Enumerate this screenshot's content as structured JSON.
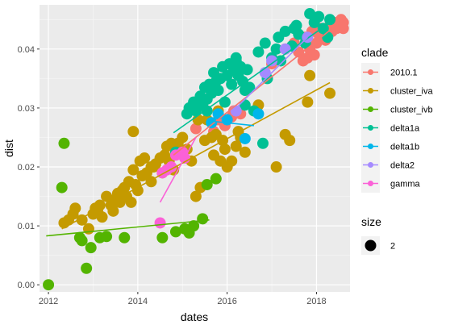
{
  "chart_data": {
    "type": "scatter",
    "xlabel": "dates",
    "ylabel": "dist",
    "xlim": [
      2011.8,
      2018.75
    ],
    "ylim": [
      -0.0012,
      0.0475
    ],
    "x_ticks": [
      2012,
      2014,
      2016,
      2018
    ],
    "x_tick_labels": [
      "2012",
      "2014",
      "2016",
      "2018"
    ],
    "y_ticks": [
      0.0,
      0.01,
      0.02,
      0.03,
      0.04
    ],
    "y_tick_labels": [
      "0.00",
      "0.01",
      "0.02",
      "0.03",
      "0.04"
    ],
    "grid": true,
    "legend_position": "right",
    "legend_title": "clade",
    "size_legend_title": "size",
    "size_legend_label": "2",
    "series": [
      {
        "name": "2010.1",
        "color": "#F8766D",
        "points": [
          [
            2014.9,
            0.0225
          ],
          [
            2015.3,
            0.0265
          ],
          [
            2015.7,
            0.026
          ],
          [
            2015.8,
            0.028
          ],
          [
            2015.95,
            0.027
          ],
          [
            2016.1,
            0.0285
          ],
          [
            2016.15,
            0.0295
          ],
          [
            2016.3,
            0.029
          ],
          [
            2017.0,
            0.0375
          ],
          [
            2017.3,
            0.04
          ],
          [
            2017.5,
            0.041
          ],
          [
            2017.6,
            0.0395
          ],
          [
            2017.7,
            0.038
          ],
          [
            2017.75,
            0.042
          ],
          [
            2017.8,
            0.0385
          ],
          [
            2017.85,
            0.04
          ],
          [
            2017.9,
            0.043
          ],
          [
            2017.95,
            0.039
          ],
          [
            2018.0,
            0.041
          ],
          [
            2018.05,
            0.0425
          ],
          [
            2018.1,
            0.0435
          ],
          [
            2018.2,
            0.0415
          ],
          [
            2018.3,
            0.044
          ],
          [
            2018.35,
            0.043
          ],
          [
            2018.4,
            0.0445
          ],
          [
            2018.45,
            0.0435
          ],
          [
            2018.5,
            0.044
          ],
          [
            2018.55,
            0.045
          ],
          [
            2018.6,
            0.0435
          ],
          [
            2018.6,
            0.0445
          ]
        ],
        "fit": [
          [
            2014.8,
            0.022
          ],
          [
            2018.6,
            0.045
          ]
        ]
      },
      {
        "name": "cluster_iva",
        "color": "#C49A00",
        "points": [
          [
            2012.35,
            0.0105
          ],
          [
            2012.45,
            0.011
          ],
          [
            2012.55,
            0.012
          ],
          [
            2012.6,
            0.013
          ],
          [
            2012.75,
            0.011
          ],
          [
            2012.9,
            0.0095
          ],
          [
            2013.0,
            0.012
          ],
          [
            2013.05,
            0.013
          ],
          [
            2013.1,
            0.0125
          ],
          [
            2013.15,
            0.0135
          ],
          [
            2013.2,
            0.0115
          ],
          [
            2013.3,
            0.015
          ],
          [
            2013.4,
            0.0135
          ],
          [
            2013.45,
            0.0125
          ],
          [
            2013.5,
            0.0145
          ],
          [
            2013.55,
            0.0155
          ],
          [
            2013.6,
            0.014
          ],
          [
            2013.65,
            0.016
          ],
          [
            2013.7,
            0.0165
          ],
          [
            2013.75,
            0.015
          ],
          [
            2013.8,
            0.0175
          ],
          [
            2013.85,
            0.014
          ],
          [
            2013.9,
            0.0195
          ],
          [
            2013.95,
            0.017
          ],
          [
            2014.0,
            0.016
          ],
          [
            2014.05,
            0.021
          ],
          [
            2014.1,
            0.0185
          ],
          [
            2014.15,
            0.0215
          ],
          [
            2014.2,
            0.019
          ],
          [
            2014.3,
            0.0175
          ],
          [
            2014.35,
            0.02
          ],
          [
            2014.4,
            0.0205
          ],
          [
            2014.5,
            0.0215
          ],
          [
            2014.55,
            0.019
          ],
          [
            2014.6,
            0.022
          ],
          [
            2014.65,
            0.0235
          ],
          [
            2014.7,
            0.021
          ],
          [
            2014.75,
            0.024
          ],
          [
            2014.8,
            0.0195
          ],
          [
            2014.85,
            0.0225
          ],
          [
            2014.9,
            0.024
          ],
          [
            2015.0,
            0.025
          ],
          [
            2015.1,
            0.023
          ],
          [
            2015.2,
            0.021
          ],
          [
            2015.3,
            0.015
          ],
          [
            2015.35,
            0.028
          ],
          [
            2015.4,
            0.0165
          ],
          [
            2015.5,
            0.0245
          ],
          [
            2015.55,
            0.028
          ],
          [
            2015.6,
            0.0335
          ],
          [
            2015.65,
            0.025
          ],
          [
            2015.7,
            0.022
          ],
          [
            2015.75,
            0.0255
          ],
          [
            2015.8,
            0.0295
          ],
          [
            2015.85,
            0.021
          ],
          [
            2015.9,
            0.0245
          ],
          [
            2015.95,
            0.023
          ],
          [
            2016.0,
            0.02
          ],
          [
            2016.1,
            0.021
          ],
          [
            2016.2,
            0.0235
          ],
          [
            2016.25,
            0.026
          ],
          [
            2016.3,
            0.025
          ],
          [
            2016.4,
            0.0225
          ],
          [
            2016.7,
            0.0305
          ],
          [
            2017.1,
            0.02
          ],
          [
            2017.3,
            0.0255
          ],
          [
            2017.4,
            0.0245
          ],
          [
            2017.8,
            0.031
          ],
          [
            2017.85,
            0.0355
          ],
          [
            2018.3,
            0.0325
          ],
          [
            2013.9,
            0.026
          ],
          [
            2014.3,
            0.02
          ]
        ],
        "fit": [
          [
            2012.3,
            0.0095
          ],
          [
            2018.3,
            0.0343
          ]
        ]
      },
      {
        "name": "cluster_ivb",
        "color": "#53B400",
        "points": [
          [
            2012.0,
            0.0
          ],
          [
            2012.3,
            0.0165
          ],
          [
            2012.35,
            0.024
          ],
          [
            2012.7,
            0.008
          ],
          [
            2012.75,
            0.0075
          ],
          [
            2012.85,
            0.0028
          ],
          [
            2012.95,
            0.0063
          ],
          [
            2013.15,
            0.008
          ],
          [
            2013.3,
            0.0082
          ],
          [
            2013.7,
            0.008
          ],
          [
            2014.55,
            0.008
          ],
          [
            2014.85,
            0.009
          ],
          [
            2015.05,
            0.0095
          ],
          [
            2015.25,
            0.01
          ],
          [
            2015.45,
            0.0112
          ],
          [
            2015.55,
            0.017
          ],
          [
            2015.75,
            0.018
          ],
          [
            2015.15,
            0.0088
          ]
        ],
        "fit": [
          [
            2011.95,
            0.0083
          ],
          [
            2015.6,
            0.011
          ]
        ]
      },
      {
        "name": "delta1a",
        "color": "#00C094",
        "points": [
          [
            2014.85,
            0.0225
          ],
          [
            2015.1,
            0.029
          ],
          [
            2015.15,
            0.03
          ],
          [
            2015.25,
            0.031
          ],
          [
            2015.3,
            0.0295
          ],
          [
            2015.4,
            0.032
          ],
          [
            2015.45,
            0.0305
          ],
          [
            2015.5,
            0.0335
          ],
          [
            2015.55,
            0.0315
          ],
          [
            2015.6,
            0.034
          ],
          [
            2015.65,
            0.0325
          ],
          [
            2015.7,
            0.036
          ],
          [
            2015.75,
            0.0345
          ],
          [
            2015.8,
            0.033
          ],
          [
            2015.85,
            0.035
          ],
          [
            2015.9,
            0.037
          ],
          [
            2015.95,
            0.031
          ],
          [
            2016.0,
            0.0355
          ],
          [
            2016.05,
            0.0375
          ],
          [
            2016.1,
            0.034
          ],
          [
            2016.15,
            0.0365
          ],
          [
            2016.2,
            0.038
          ],
          [
            2016.25,
            0.0355
          ],
          [
            2016.3,
            0.037
          ],
          [
            2016.35,
            0.0345
          ],
          [
            2016.4,
            0.033
          ],
          [
            2016.45,
            0.0365
          ],
          [
            2016.5,
            0.0335
          ],
          [
            2016.6,
            0.0295
          ],
          [
            2016.7,
            0.0395
          ],
          [
            2016.8,
            0.024
          ],
          [
            2016.85,
            0.041
          ],
          [
            2016.9,
            0.035
          ],
          [
            2017.0,
            0.0385
          ],
          [
            2017.1,
            0.04
          ],
          [
            2017.15,
            0.042
          ],
          [
            2017.2,
            0.038
          ],
          [
            2017.3,
            0.043
          ],
          [
            2017.45,
            0.0405
          ],
          [
            2017.55,
            0.044
          ],
          [
            2017.6,
            0.0425
          ],
          [
            2017.75,
            0.041
          ],
          [
            2017.85,
            0.046
          ],
          [
            2017.95,
            0.0445
          ],
          [
            2018.05,
            0.0455
          ],
          [
            2018.15,
            0.0435
          ],
          [
            2018.25,
            0.042
          ],
          [
            2018.3,
            0.045
          ],
          [
            2016.2,
            0.0385
          ],
          [
            2016.4,
            0.0305
          ],
          [
            2015.55,
            0.0295
          ],
          [
            2017.5,
            0.0435
          ]
        ],
        "fit": [
          [
            2014.8,
            0.0258
          ],
          [
            2018.3,
            0.0445
          ]
        ]
      },
      {
        "name": "delta1b",
        "color": "#00B6EB",
        "points": [
          [
            2015.65,
            0.0275
          ],
          [
            2015.8,
            0.029
          ],
          [
            2016.0,
            0.028
          ],
          [
            2016.4,
            0.0248
          ],
          [
            2016.7,
            0.029
          ]
        ],
        "fit": [
          [
            2015.6,
            0.0278
          ],
          [
            2016.6,
            0.027
          ]
        ]
      },
      {
        "name": "delta2",
        "color": "#A58AFF",
        "points": [
          [
            2016.2,
            0.0295
          ],
          [
            2016.85,
            0.036
          ],
          [
            2017.0,
            0.038
          ],
          [
            2017.3,
            0.04
          ],
          [
            2017.8,
            0.042
          ]
        ],
        "fit": [
          [
            2016.2,
            0.03
          ],
          [
            2017.8,
            0.042
          ]
        ]
      },
      {
        "name": "gamma",
        "color": "#FB61D7",
        "points": [
          [
            2014.5,
            0.0105
          ],
          [
            2014.55,
            0.019
          ],
          [
            2014.65,
            0.0195
          ],
          [
            2014.75,
            0.02
          ],
          [
            2014.85,
            0.022
          ],
          [
            2015.0,
            0.0225
          ],
          [
            2015.05,
            0.0215
          ]
        ],
        "fit": [
          [
            2014.5,
            0.014
          ],
          [
            2015.3,
            0.025
          ]
        ]
      }
    ]
  }
}
